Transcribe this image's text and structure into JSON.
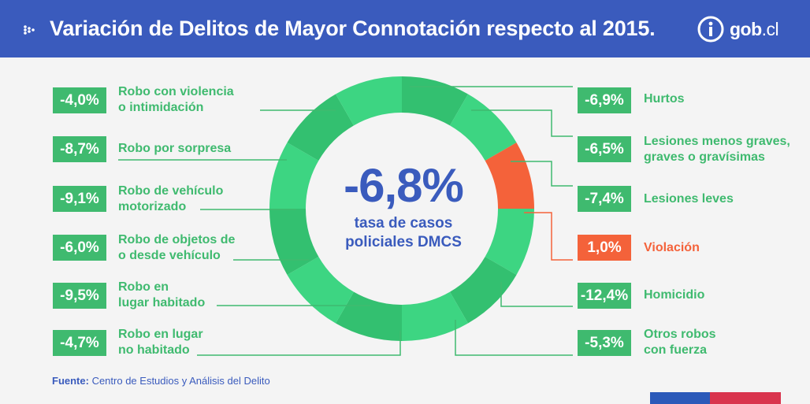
{
  "header": {
    "title": "Variación de Delitos de  Mayor Connotación respecto al 2015.",
    "logo_main": "gob",
    "logo_suffix": ".cl"
  },
  "center": {
    "value": "-6,8%",
    "subtitle": "tasa de casos\npoliciales DMCS"
  },
  "source": {
    "label": "Fuente:",
    "text": " Centro de Estudios y Análisis del Delito"
  },
  "colors": {
    "green": "#3fba6f",
    "ring_light": "#3dd582",
    "ring_dark": "#33c070",
    "highlight": "#f4623a",
    "blue": "#3a5bbd"
  },
  "chart_data": {
    "type": "pie",
    "title": "Variación de Delitos de  Mayor Connotación respecto al 2015.",
    "total": {
      "value": -6.8,
      "label": "-6,8%",
      "description": "tasa de casos\npoliciales DMCS"
    },
    "items": [
      {
        "category": "Robo con violencia\no intimidación",
        "value": -4.0,
        "label": "-4,0%"
      },
      {
        "category": "Robo por sorpresa",
        "value": -8.7,
        "label": "-8,7%"
      },
      {
        "category": "Robo de vehículo\nmotorizado",
        "value": -9.1,
        "label": "-9,1%"
      },
      {
        "category": "Robo de objetos de\no desde vehículo",
        "value": -6.0,
        "label": "-6,0%"
      },
      {
        "category": "Robo en\nlugar habitado",
        "value": -9.5,
        "label": "-9,5%"
      },
      {
        "category": "Robo en lugar\nno habitado",
        "value": -4.7,
        "label": "-4,7%"
      },
      {
        "category": "Hurtos",
        "value": -6.9,
        "label": "-6,9%"
      },
      {
        "category": "Lesiones menos graves,\ngraves o gravísimas",
        "value": -6.5,
        "label": "-6,5%"
      },
      {
        "category": "Lesiones leves",
        "value": -7.4,
        "label": "-7,4%"
      },
      {
        "category": "Violación",
        "value": 1.0,
        "label": "1,0%",
        "highlight": true
      },
      {
        "category": "Homicidio",
        "value": -12.4,
        "label": "-12,4%"
      },
      {
        "category": "Otros robos\ncon fuerza",
        "value": -5.3,
        "label": "-5,3%"
      }
    ]
  }
}
